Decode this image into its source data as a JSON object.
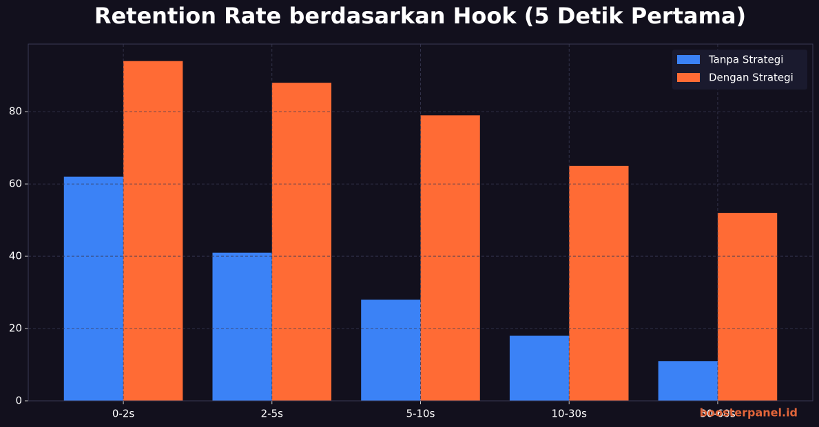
{
  "chart_data": {
    "type": "bar",
    "title": "Retention Rate berdasarkan Hook (5 Detik Pertama)",
    "categories": [
      "0-2s",
      "2-5s",
      "5-10s",
      "10-30s",
      "30-60s"
    ],
    "series": [
      {
        "name": "Tanpa Strategi",
        "color": "#3b82f6",
        "values": [
          62,
          41,
          28,
          18,
          11
        ]
      },
      {
        "name": "Dengan Strategi",
        "color": "#ff6b35",
        "values": [
          94,
          88,
          79,
          65,
          52
        ]
      }
    ],
    "ylim": [
      0,
      98.7
    ],
    "yticks": [
      0,
      20,
      40,
      60,
      80
    ],
    "grid": true,
    "legend": "upper right",
    "watermark": "boosterpanel.id"
  }
}
